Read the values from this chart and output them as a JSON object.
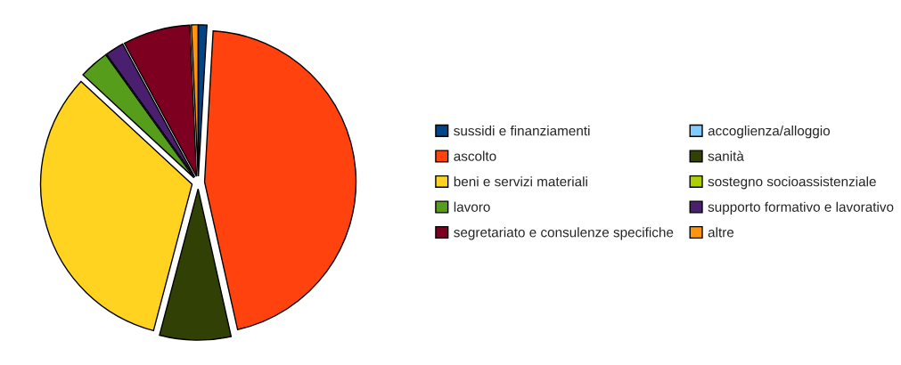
{
  "chart_data": {
    "type": "pie",
    "categories": [
      "sussidi e finanziamenti",
      "accoglienza/alloggio",
      "ascolto",
      "sanità",
      "beni e servizi materiali",
      "sostegno socioassistenziale",
      "lavoro",
      "supporto formativo e lavorativo",
      "segretariato e consulenze specifiche",
      "altre"
    ],
    "values": [
      0.9,
      0,
      45.6,
      7.6,
      32.8,
      0,
      3.2,
      2.0,
      7.2,
      0.7
    ],
    "colors": [
      "#004586",
      "#83caff",
      "#ff420e",
      "#314004",
      "#ffd320",
      "#aecf00",
      "#579d1c",
      "#4b1f6f",
      "#7e0021",
      "#ff950e"
    ],
    "legend": "right"
  }
}
